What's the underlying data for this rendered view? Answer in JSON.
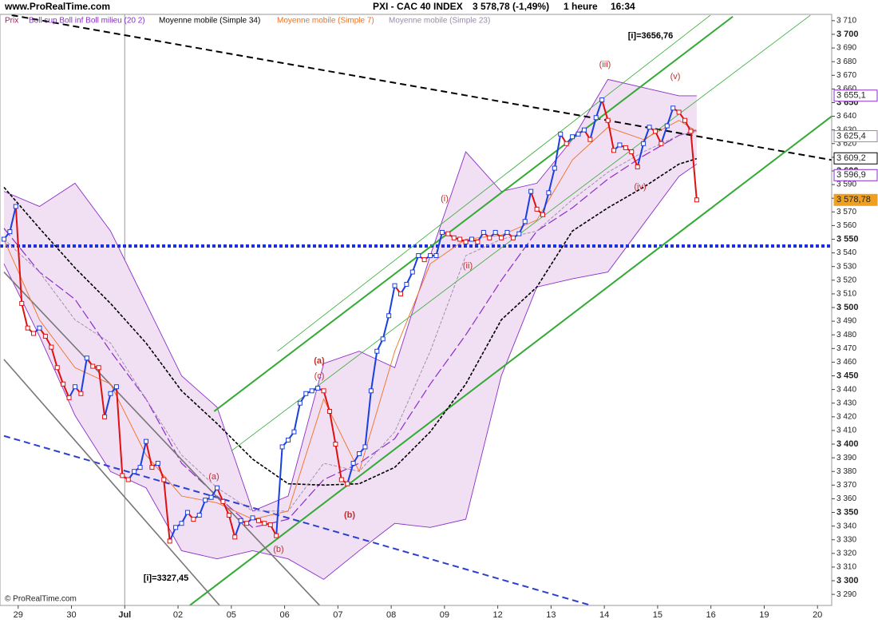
{
  "header": {
    "site": "www.ProRealTime.com",
    "instrument": "PXI - CAC 40 INDEX",
    "price": "3 578,78 (-1,49%)",
    "timeframe": "1 heure",
    "time": "16:34"
  },
  "footer": "© ProRealTime.com",
  "chart_data": {
    "type": "line",
    "xlim": [
      -0.67,
      139.8
    ],
    "ylim": [
      3281.9,
      3714.6
    ],
    "xticks": [
      {
        "value": 2.4,
        "label": "29"
      },
      {
        "value": 11.4,
        "label": "30"
      },
      {
        "value": 20.4,
        "label": "Jul"
      },
      {
        "value": 29.4,
        "label": "02"
      },
      {
        "value": 38.4,
        "label": "05"
      },
      {
        "value": 47.4,
        "label": "06"
      },
      {
        "value": 56.4,
        "label": "07"
      },
      {
        "value": 65.4,
        "label": "08"
      },
      {
        "value": 74.4,
        "label": "09"
      },
      {
        "value": 83.4,
        "label": "12"
      },
      {
        "value": 92.4,
        "label": "13"
      },
      {
        "value": 101.4,
        "label": "14"
      },
      {
        "value": 110.4,
        "label": "15"
      },
      {
        "value": 119.4,
        "label": "16"
      },
      {
        "value": 128.4,
        "label": "19"
      },
      {
        "value": 137.4,
        "label": "20"
      }
    ],
    "separator_tick": 2,
    "yticks": [
      {
        "value": 3290,
        "label": "3 290"
      },
      {
        "value": 3300,
        "label": "3 300"
      },
      {
        "value": 3310,
        "label": "3 310"
      },
      {
        "value": 3320,
        "label": "3 320"
      },
      {
        "value": 3330,
        "label": "3 330"
      },
      {
        "value": 3340,
        "label": "3 340"
      },
      {
        "value": 3350,
        "label": "3 350"
      },
      {
        "value": 3360,
        "label": "3 360"
      },
      {
        "value": 3370,
        "label": "3 370"
      },
      {
        "value": 3380,
        "label": "3 380"
      },
      {
        "value": 3390,
        "label": "3 390"
      },
      {
        "value": 3400,
        "label": "3 400"
      },
      {
        "value": 3410,
        "label": "3 410"
      },
      {
        "value": 3420,
        "label": "3 420"
      },
      {
        "value": 3430,
        "label": "3 430"
      },
      {
        "value": 3440,
        "label": "3 440"
      },
      {
        "value": 3450,
        "label": "3 450"
      },
      {
        "value": 3460,
        "label": "3 460"
      },
      {
        "value": 3470,
        "label": "3 470"
      },
      {
        "value": 3480,
        "label": "3 480"
      },
      {
        "value": 3490,
        "label": "3 490"
      },
      {
        "value": 3500,
        "label": "3 500"
      },
      {
        "value": 3510,
        "label": "3 510"
      },
      {
        "value": 3520,
        "label": "3 520"
      },
      {
        "value": 3530,
        "label": "3 530"
      },
      {
        "value": 3540,
        "label": "3 540"
      },
      {
        "value": 3550,
        "label": "3 550"
      },
      {
        "value": 3560,
        "label": "3 560"
      },
      {
        "value": 3570,
        "label": "3 570"
      },
      {
        "value": 3580,
        "label": "3 580"
      },
      {
        "value": 3590,
        "label": "3 590"
      },
      {
        "value": 3600,
        "label": "3 600"
      },
      {
        "value": 3610,
        "label": "3 610"
      },
      {
        "value": 3620,
        "label": "3 620"
      },
      {
        "value": 3630,
        "label": "3 630"
      },
      {
        "value": 3640,
        "label": "3 640"
      },
      {
        "value": 3650,
        "label": "3 650"
      },
      {
        "value": 3660,
        "label": "3 660"
      },
      {
        "value": 3670,
        "label": "3 670"
      },
      {
        "value": 3680,
        "label": "3 680"
      },
      {
        "value": 3690,
        "label": "3 690"
      },
      {
        "value": 3700,
        "label": "3 700"
      },
      {
        "value": 3710,
        "label": "3 710"
      }
    ],
    "price": {
      "name": "Prix",
      "legend_color": "#cc0066",
      "color_up": "#1a3fe0",
      "color_down": "#e01010",
      "values": [
        3550,
        3555.5,
        3574,
        3503,
        3485,
        3481,
        3485,
        3479,
        3471,
        3456,
        3444,
        3434,
        3442,
        3437,
        3463,
        3457,
        3456,
        3420,
        3437,
        3442,
        3377,
        3374,
        3380,
        3383,
        3402,
        3383,
        3386,
        3374,
        3329,
        3339,
        3342,
        3350,
        3345,
        3348,
        3359,
        3361,
        3368,
        3358,
        3348,
        3332,
        3344,
        3342,
        3346,
        3344,
        3342,
        3341,
        3333,
        3398,
        3403,
        3409,
        3430,
        3437,
        3439,
        3441,
        3439,
        3424,
        3400,
        3374,
        3371,
        3386,
        3393,
        3398,
        3439,
        3468,
        3477,
        3494,
        3516,
        3510,
        3517,
        3526,
        3538,
        3535,
        3538,
        3538,
        3555,
        3554,
        3551,
        3550,
        3548,
        3550,
        3548,
        3555,
        3551,
        3555,
        3551,
        3555,
        3551,
        3554,
        3563,
        3585,
        3572,
        3568,
        3584,
        3602,
        3627,
        3620,
        3625,
        3627,
        3630,
        3623,
        3639,
        3652,
        3637,
        3615,
        3619,
        3617,
        3614,
        3603,
        3620,
        3632,
        3629,
        3620,
        3633,
        3646,
        3643,
        3637,
        3629,
        3578.78
      ]
    },
    "overlay_x": [
      0,
      6,
      12,
      18,
      24,
      30,
      36,
      42,
      48,
      54,
      60,
      66,
      72,
      78,
      84,
      90,
      96,
      102,
      108,
      114,
      117
    ],
    "bollinger": {
      "name": "Boll sup Boll inf Boll milieu (20 2)",
      "color": "#8b2fc9",
      "fill": "#f1dff3",
      "upper": [
        3585,
        3574,
        3591,
        3556,
        3503,
        3450,
        3427,
        3351,
        3362,
        3459,
        3468,
        3456,
        3538,
        3614,
        3585,
        3591,
        3623,
        3667,
        3661,
        3655,
        3655
      ],
      "lower": [
        3532,
        3479,
        3421,
        3380,
        3368,
        3322,
        3316,
        3322,
        3316,
        3301,
        3322,
        3342,
        3339,
        3345,
        3450,
        3515,
        3521,
        3526,
        3561,
        3596,
        3605
      ],
      "middle": [
        3558,
        3526,
        3506,
        3468,
        3433,
        3386,
        3362,
        3339,
        3345,
        3374,
        3386,
        3404,
        3444,
        3480,
        3520,
        3556,
        3573,
        3594,
        3611,
        3626,
        3630
      ]
    },
    "series": [
      {
        "name": "Moyenne mobile (Simple 34)",
        "color": "#000000",
        "style": "dashed",
        "width": 1.6,
        "values": [
          3588,
          3558,
          3529,
          3503,
          3474,
          3439,
          3415,
          3389,
          3371,
          3370,
          3371,
          3383,
          3409,
          3444,
          3491,
          3515,
          3556,
          3573,
          3588,
          3605,
          3609
        ]
      },
      {
        "name": "Moyenne mobile (Simple 7)",
        "color": "#f07020",
        "style": "solid",
        "width": 0.9,
        "values": [
          3550,
          3491,
          3456,
          3444,
          3392,
          3362,
          3357,
          3345,
          3351,
          3433,
          3380,
          3468,
          3532,
          3550,
          3553,
          3564,
          3608,
          3632,
          3623,
          3637,
          3629
        ]
      },
      {
        "name": "Moyenne mobile (Simple 23)",
        "color": "#9a8aa8",
        "style": "dashed",
        "width": 0.9,
        "values": [
          3550,
          3526,
          3491,
          3474,
          3433,
          3392,
          3368,
          3351,
          3351,
          3386,
          3380,
          3409,
          3468,
          3538,
          3550,
          3556,
          3579,
          3599,
          3614,
          3626,
          3629
        ]
      }
    ],
    "trendlines": [
      {
        "x": [
          1.3,
          139.8
        ],
        "y": [
          3714,
          3608
        ],
        "color": "#000000",
        "style": "dashed",
        "width": 2
      },
      {
        "x": [
          -0.67,
          139.8
        ],
        "y": [
          3545,
          3545
        ],
        "color": "#1a2fe0",
        "style": "dotted",
        "width": 4
      },
      {
        "x": [
          0,
          99.1
        ],
        "y": [
          3406,
          3282
        ],
        "color": "#2a3fd0",
        "style": "dashed",
        "width": 2
      },
      {
        "x": [
          35.5,
          123.1
        ],
        "y": [
          3424,
          3713
        ],
        "color": "#33aa33",
        "style": "solid",
        "width": 2
      },
      {
        "x": [
          46.2,
          119.3
        ],
        "y": [
          3468,
          3714
        ],
        "color": "#33aa33",
        "style": "solid",
        "width": 0.8
      },
      {
        "x": [
          38.4,
          136.2
        ],
        "y": [
          3395,
          3714
        ],
        "color": "#33aa33",
        "style": "solid",
        "width": 0.8
      },
      {
        "x": [
          31.4,
          139.8
        ],
        "y": [
          3282,
          3640
        ],
        "color": "#33aa33",
        "style": "solid",
        "width": 2
      },
      {
        "x": [
          0,
          53.3
        ],
        "y": [
          3526,
          3282
        ],
        "color": "#777777",
        "style": "solid",
        "width": 1.6
      },
      {
        "x": [
          0,
          36.4
        ],
        "y": [
          3462,
          3282
        ],
        "color": "#777777",
        "style": "solid",
        "width": 1.6
      }
    ],
    "price_tags": [
      {
        "value": 3655.1,
        "label": "3 655,1",
        "color": "#8b2fc9",
        "filled": false
      },
      {
        "value": 3625.4,
        "label": "3 625,4",
        "color": "#9a8aa8",
        "filled": false
      },
      {
        "value": 3609.2,
        "label": "3 609,2",
        "color": "#000000",
        "filled": false
      },
      {
        "value": 3596.9,
        "label": "3 596,9",
        "color": "#8b2fc9",
        "filled": false
      },
      {
        "value": 3578.78,
        "label": "3 578,78",
        "color": "#f0a020",
        "filled": true
      }
    ],
    "annotations": [
      {
        "text": "[i]=3656,76",
        "color": "#000000",
        "bold": true
      },
      {
        "text": "[i]=3327,45",
        "color": "#000000",
        "bold": true
      },
      {
        "text": "(a)",
        "color": "#c03030",
        "bold": false
      },
      {
        "text": "(b)",
        "color": "#c03030",
        "bold": false
      },
      {
        "text": "(a)",
        "color": "#c03030",
        "bold": true
      },
      {
        "text": "(c)",
        "color": "#c03030",
        "bold": false
      },
      {
        "text": "(b)",
        "color": "#c03030",
        "bold": true
      },
      {
        "text": "(i)",
        "color": "#c03030",
        "bold": false
      },
      {
        "text": "(ii)",
        "color": "#c03030",
        "bold": false
      },
      {
        "text": "(iii)",
        "color": "#c03030",
        "bold": false
      },
      {
        "text": "(iv)",
        "color": "#c03030",
        "bold": false
      },
      {
        "text": "(v)",
        "color": "#c03030",
        "bold": false
      }
    ]
  }
}
